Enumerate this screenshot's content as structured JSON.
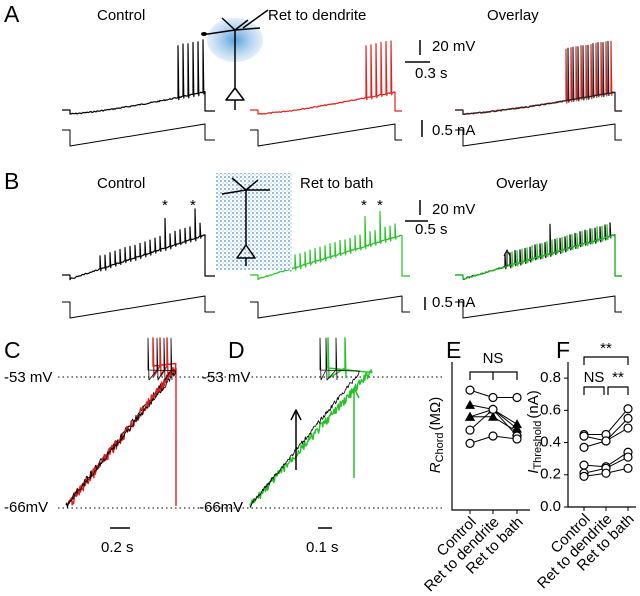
{
  "panels": {
    "A": {
      "label": "A",
      "control": "Control",
      "condition": "Ret to dendrite",
      "overlay": "Overlay",
      "v_scale": "20 mV",
      "t_scale": "0.3 s",
      "i_scale": "0.5 nA"
    },
    "B": {
      "label": "B",
      "control": "Control",
      "condition": "Ret to bath",
      "overlay": "Overlay",
      "v_scale": "20 mV",
      "t_scale": "0.5 s",
      "i_scale": "0.5 nA",
      "asterisks": [
        "*",
        "*",
        "*",
        "*"
      ]
    },
    "C": {
      "label": "C",
      "upper": "-53 mV",
      "lower": "-66mV",
      "t_scale": "0.2 s"
    },
    "D": {
      "label": "D",
      "upper": "-53 mV",
      "lower": "-66mV",
      "t_scale": "0.1 s"
    }
  },
  "chart_data": [
    {
      "type": "line",
      "panel_label": "E",
      "y_label": "R",
      "y_label_sub": "Chord",
      "y_label_unit": "(MΩ)",
      "annotations": [
        "NS"
      ],
      "categories": [
        "Control",
        "Ret to dendrite",
        "Ret to bath"
      ],
      "ylim": [
        0,
        100
      ],
      "color": "#000000",
      "series": [
        {
          "marker": "circle",
          "values": [
            81,
            76,
            76
          ]
        },
        {
          "marker": "triangle",
          "values": [
            71,
            68,
            58
          ]
        },
        {
          "marker": "triangle",
          "values": [
            63,
            68,
            55
          ]
        },
        {
          "marker": "triangle",
          "values": [
            63,
            63,
            53
          ]
        },
        {
          "marker": "circle",
          "values": [
            54,
            68,
            50
          ]
        },
        {
          "marker": "circle",
          "values": [
            45,
            50,
            48
          ]
        }
      ]
    },
    {
      "type": "line",
      "panel_label": "F",
      "y_label": "I",
      "y_label_sub": "Threshold",
      "y_label_unit": "(nA)",
      "annotations": [
        "**",
        "NS",
        "**"
      ],
      "categories": [
        "Control",
        "Ret to dendrite",
        "Ret to bath"
      ],
      "ylim": [
        0,
        0.9
      ],
      "color": "#000000",
      "yticks": [
        {
          "value": 0,
          "label": "0.0"
        },
        0.2,
        0.4,
        0.6,
        0.8
      ],
      "series": [
        {
          "marker": "circle",
          "values": [
            0.45,
            0.45,
            0.61
          ]
        },
        {
          "marker": "circle",
          "values": [
            0.44,
            0.41,
            0.55
          ]
        },
        {
          "marker": "circle",
          "values": [
            0.37,
            0.41,
            0.49
          ]
        },
        {
          "marker": "circle",
          "values": [
            0.26,
            0.25,
            0.34
          ]
        },
        {
          "marker": "circle",
          "values": [
            0.21,
            0.24,
            0.31
          ]
        },
        {
          "marker": "circle",
          "values": [
            0.19,
            0.21,
            0.24
          ]
        }
      ]
    }
  ]
}
